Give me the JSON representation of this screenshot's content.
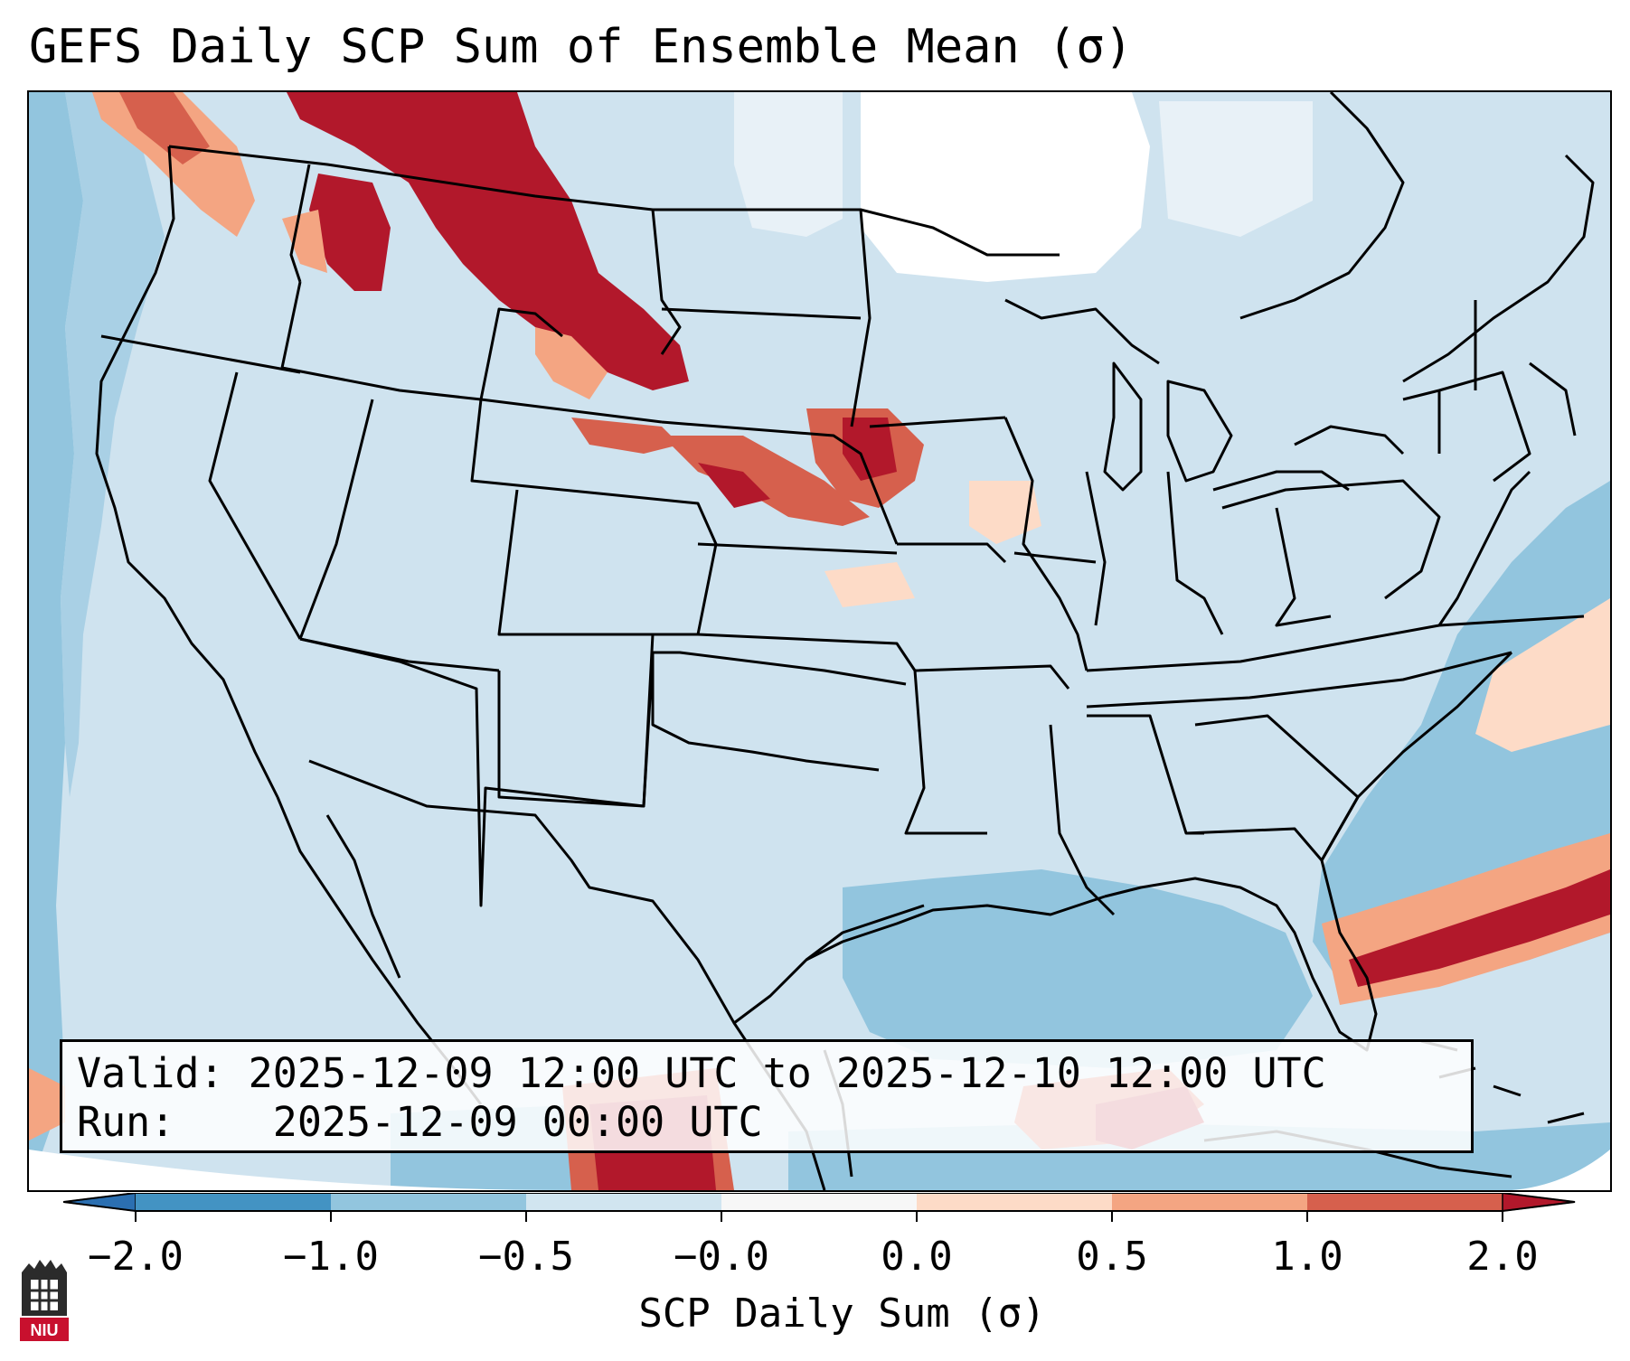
{
  "title": "GEFS Daily SCP Sum of Ensemble Mean (σ)",
  "info": {
    "valid_label": "Valid:",
    "valid_value": "2025-12-09 12:00 UTC to 2025-12-10 12:00 UTC",
    "run_label": "Run:",
    "run_value": "2025-12-09 00:00 UTC"
  },
  "colorbar": {
    "label": "SCP Daily Sum (σ)",
    "ticks": [
      "−2.0",
      "−1.0",
      "−0.5",
      "−0.0",
      "0.0",
      "0.5",
      "1.0",
      "2.0"
    ],
    "colors": {
      "lt_-2": "#2b6fb1",
      "-2_-1": "#4393c3",
      "-1_-0.5": "#92c5de",
      "-0.5_0": "#d1e5f0",
      "0_0": "#f7f7f7",
      "0_0.5": "#fddbc7",
      "0.5_1": "#f4a582",
      "1_2": "#d6604d",
      "gt_2": "#b2182b"
    }
  },
  "logo": {
    "text": "NIU",
    "color": "#c8102e"
  }
}
